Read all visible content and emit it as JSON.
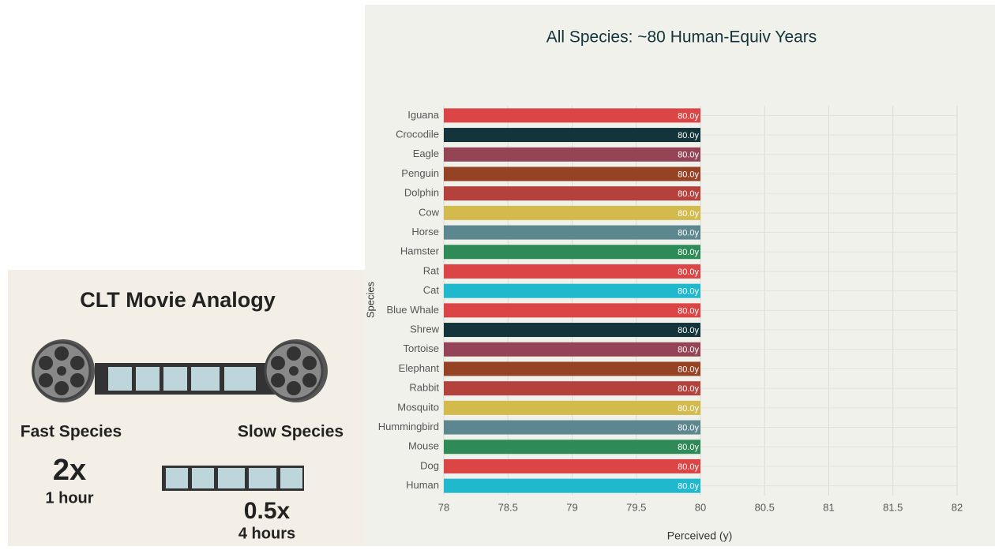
{
  "analogy": {
    "title": "CLT Movie Analogy",
    "left_label": "Fast Species",
    "right_label": "Slow Species",
    "fast_speed": "2x",
    "fast_time": "1 hour",
    "slow_speed": "0.5x",
    "slow_time": "4 hours"
  },
  "chart_data": {
    "type": "hbar",
    "title": "All Species: ~80 Human-Equiv Years",
    "x_label": "Perceived (y)",
    "y_label": "Species",
    "categories": [
      "Iguana",
      "Crocodile",
      "Eagle",
      "Penguin",
      "Dolphin",
      "Cow",
      "Horse",
      "Hamster",
      "Rat",
      "Cat",
      "Blue Whale",
      "Shrew",
      "Tortoise",
      "Elephant",
      "Rabbit",
      "Mosquito",
      "Hummingbird",
      "Mouse",
      "Dog",
      "Human"
    ],
    "values": [
      80,
      80,
      80,
      80,
      80,
      80,
      80,
      80,
      80,
      80,
      80,
      80,
      80,
      80,
      80,
      80,
      80,
      80,
      80,
      80
    ],
    "value_labels": [
      "80.0y",
      "80.0y",
      "80.0y",
      "80.0y",
      "80.0y",
      "80.0y",
      "80.0y",
      "80.0y",
      "80.0y",
      "80.0y",
      "80.0y",
      "80.0y",
      "80.0y",
      "80.0y",
      "80.0y",
      "80.0y",
      "80.0y",
      "80.0y",
      "80.0y",
      "80.0y"
    ],
    "colors": [
      "#db4545",
      "#13343b",
      "#944454",
      "#964325",
      "#b4413c",
      "#d2ba4c",
      "#5d878f",
      "#2e8b57",
      "#db4545",
      "#1fb8cd",
      "#db4545",
      "#13343b",
      "#944454",
      "#964325",
      "#b4413c",
      "#d2ba4c",
      "#5d878f",
      "#2e8b57",
      "#db4545",
      "#1fb8cd"
    ],
    "xlim": [
      78,
      82
    ],
    "xticks": [
      78,
      78.5,
      79,
      79.5,
      80,
      80.5,
      81,
      81.5,
      82
    ],
    "grid": true
  }
}
